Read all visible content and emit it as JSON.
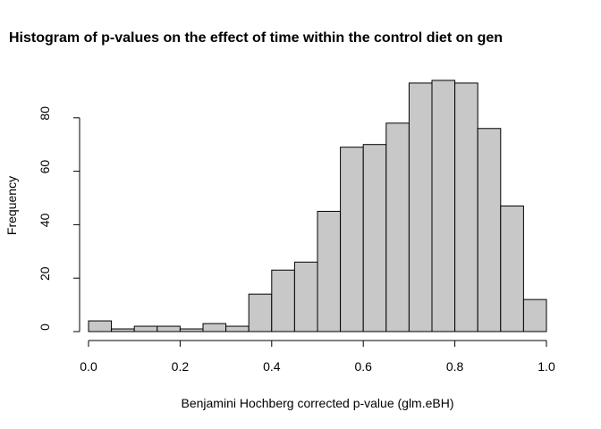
{
  "chart_data": {
    "type": "histogram",
    "title": "Histogram of p-values on the effect of time within the control diet on gen",
    "x_label": "Benjamini Hochberg corrected p-value (glm.eBH)",
    "y_label": "Frequency",
    "bins": [
      0,
      0.05,
      0.1,
      0.15,
      0.2,
      0.25,
      0.3,
      0.35,
      0.4,
      0.45,
      0.5,
      0.55,
      0.6,
      0.65,
      0.7,
      0.75,
      0.8,
      0.85,
      0.9,
      0.95,
      1
    ],
    "counts": [
      4,
      1,
      2,
      2,
      1,
      3,
      2,
      14,
      23,
      26,
      45,
      69,
      70,
      78,
      93,
      94,
      93,
      76,
      47,
      12
    ],
    "color": "#c8c8c8",
    "xlim": [
      0,
      1
    ],
    "xticks": [
      {
        "value": 0,
        "label": "0.0"
      },
      0.2,
      0.4,
      0.6,
      0.8,
      {
        "value": 1,
        "label": "1.0"
      }
    ],
    "ylim": [
      0,
      100
    ],
    "yticks": [
      0,
      20,
      40,
      60,
      80
    ]
  }
}
